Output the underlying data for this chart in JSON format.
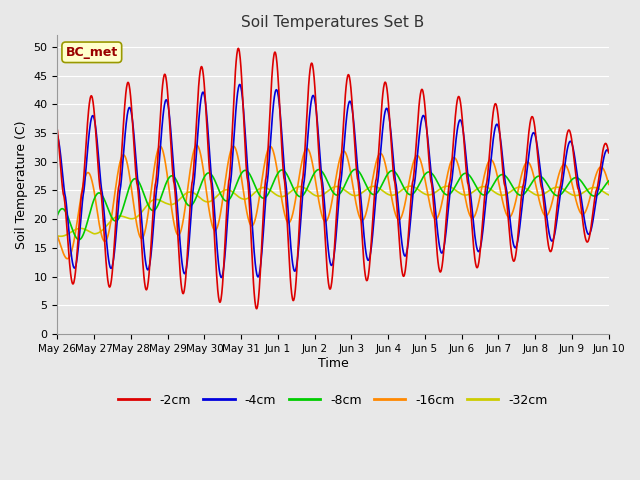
{
  "title": "Soil Temperatures Set B",
  "xlabel": "Time",
  "ylabel": "Soil Temperature (C)",
  "annotation": "BC_met",
  "ylim": [
    0,
    52
  ],
  "yticks": [
    0,
    5,
    10,
    15,
    20,
    25,
    30,
    35,
    40,
    45,
    50
  ],
  "date_labels": [
    "May 26",
    "May 27",
    "May 28",
    "May 29",
    "May 30",
    "May 31",
    "Jun 1",
    "Jun 2",
    "Jun 3",
    "Jun 4",
    "Jun 5",
    "Jun 6",
    "Jun 7",
    "Jun 8",
    "Jun 9",
    "Jun 10"
  ],
  "series_colors": [
    "#dd0000",
    "#0000dd",
    "#00cc00",
    "#ff8800",
    "#cccc00"
  ],
  "series_labels": [
    "-2cm",
    "-4cm",
    "-8cm",
    "-16cm",
    "-32cm"
  ],
  "bg_color": "#e8e8e8",
  "grid_color": "#ffffff",
  "figsize": [
    6.4,
    4.8
  ],
  "dpi": 100
}
